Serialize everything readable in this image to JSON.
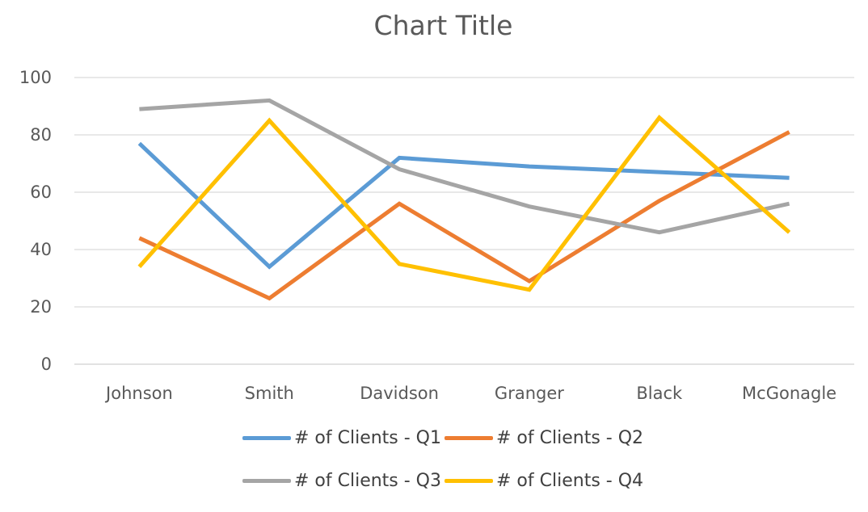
{
  "chart_data": {
    "type": "line",
    "title": "Chart Title",
    "xlabel": "",
    "ylabel": "",
    "categories": [
      "Johnson",
      "Smith",
      "Davidson",
      "Granger",
      "Black",
      "McGonagle"
    ],
    "ylim": [
      0,
      100
    ],
    "yticks": [
      0,
      20,
      40,
      60,
      80,
      100
    ],
    "grid": true,
    "legend_position": "bottom",
    "series": [
      {
        "name": "# of Clients - Q1",
        "color": "#5B9BD5",
        "values": [
          77,
          34,
          72,
          69,
          67,
          65
        ]
      },
      {
        "name": "# of Clients - Q2",
        "color": "#ED7D31",
        "values": [
          44,
          23,
          56,
          29,
          57,
          81
        ]
      },
      {
        "name": "# of Clients - Q3",
        "color": "#A5A5A5",
        "values": [
          89,
          92,
          68,
          55,
          46,
          56
        ]
      },
      {
        "name": "# of Clients - Q4",
        "color": "#FFC000",
        "values": [
          34,
          85,
          35,
          26,
          86,
          46
        ]
      }
    ]
  }
}
